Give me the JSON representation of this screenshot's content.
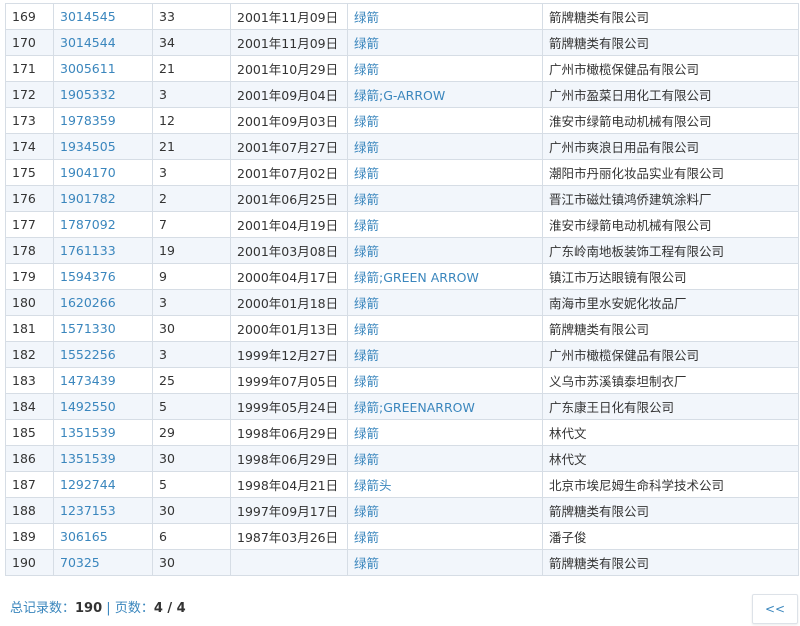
{
  "columns_hint": [],
  "rows": [
    [
      "169",
      "3014545",
      "33",
      "2001年11月09日",
      "绿箭",
      "箭牌糖类有限公司"
    ],
    [
      "170",
      "3014544",
      "34",
      "2001年11月09日",
      "绿箭",
      "箭牌糖类有限公司"
    ],
    [
      "171",
      "3005611",
      "21",
      "2001年10月29日",
      "绿箭",
      "广州市橄榄保健品有限公司"
    ],
    [
      "172",
      "1905332",
      "3",
      "2001年09月04日",
      "绿箭;G-ARROW",
      "广州市盈菜日用化工有限公司"
    ],
    [
      "173",
      "1978359",
      "12",
      "2001年09月03日",
      "绿箭",
      "淮安市绿箭电动机械有限公司"
    ],
    [
      "174",
      "1934505",
      "21",
      "2001年07月27日",
      "绿箭",
      "广州市爽浪日用品有限公司"
    ],
    [
      "175",
      "1904170",
      "3",
      "2001年07月02日",
      "绿箭",
      "潮阳市丹丽化妆品实业有限公司"
    ],
    [
      "176",
      "1901782",
      "2",
      "2001年06月25日",
      "绿箭",
      "晋江市磁灶镇鸿侨建筑涂料厂"
    ],
    [
      "177",
      "1787092",
      "7",
      "2001年04月19日",
      "绿箭",
      "淮安市绿箭电动机械有限公司"
    ],
    [
      "178",
      "1761133",
      "19",
      "2001年03月08日",
      "绿箭",
      "广东岭南地板装饰工程有限公司"
    ],
    [
      "179",
      "1594376",
      "9",
      "2000年04月17日",
      "绿箭;GREEN ARROW",
      "镇江市万达眼镜有限公司"
    ],
    [
      "180",
      "1620266",
      "3",
      "2000年01月18日",
      "绿箭",
      "南海市里水安妮化妆品厂"
    ],
    [
      "181",
      "1571330",
      "30",
      "2000年01月13日",
      "绿箭",
      "箭牌糖类有限公司"
    ],
    [
      "182",
      "1552256",
      "3",
      "1999年12月27日",
      "绿箭",
      "广州市橄榄保健品有限公司"
    ],
    [
      "183",
      "1473439",
      "25",
      "1999年07月05日",
      "绿箭",
      "义乌市苏溪镇泰坦制衣厂"
    ],
    [
      "184",
      "1492550",
      "5",
      "1999年05月24日",
      "绿箭;GREENARROW",
      "广东康王日化有限公司"
    ],
    [
      "185",
      "1351539",
      "29",
      "1998年06月29日",
      "绿箭",
      "林代文"
    ],
    [
      "186",
      "1351539",
      "30",
      "1998年06月29日",
      "绿箭",
      "林代文"
    ],
    [
      "187",
      "1292744",
      "5",
      "1998年04月21日",
      "绿箭头",
      "北京市埃尼姆生命科学技术公司"
    ],
    [
      "188",
      "1237153",
      "30",
      "1997年09月17日",
      "绿箭",
      "箭牌糖类有限公司"
    ],
    [
      "189",
      "306165",
      "6",
      "1987年03月26日",
      "绿箭",
      "潘子俊"
    ],
    [
      "190",
      "70325",
      "30",
      "",
      "绿箭",
      "箭牌糖类有限公司"
    ]
  ],
  "footer": {
    "total_label": "总记录数：",
    "total": "190",
    "sep": " | ",
    "pages_label": "页数：",
    "pages": "4 / 4"
  },
  "pagination": {
    "prev_label": "<<"
  },
  "colors": {
    "link": "#3a86bd",
    "row_alt": "#f2f6fb",
    "border": "#d6dde5"
  }
}
